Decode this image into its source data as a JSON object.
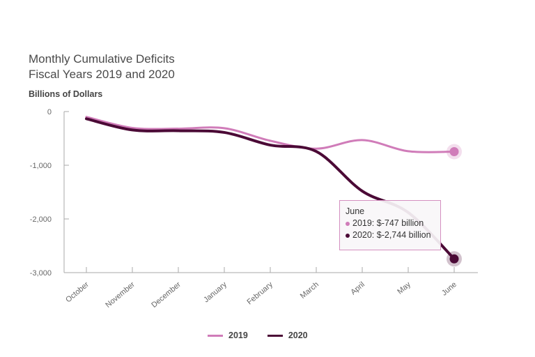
{
  "chart_data": {
    "type": "line",
    "title_lines": [
      "Monthly Cumulative Deficits",
      "Fiscal Years 2019 and 2020"
    ],
    "ylabel": "Billions of Dollars",
    "xlabel": "",
    "categories": [
      "October",
      "November",
      "December",
      "January",
      "February",
      "March",
      "April",
      "May",
      "June"
    ],
    "yticks": [
      0,
      -1000,
      -2000,
      -3000
    ],
    "ytick_labels": [
      "0",
      "-1,000",
      "-2,000",
      "-3,000"
    ],
    "ylim": [
      -3000,
      0
    ],
    "grid": false,
    "legend_position": "bottom",
    "series": [
      {
        "name": "2019",
        "color": "#d07cb9",
        "values": [
          -100,
          -305,
          -319,
          -310,
          -544,
          -691,
          -531,
          -739,
          -747
        ]
      },
      {
        "name": "2020",
        "color": "#4b0a36",
        "values": [
          -134,
          -343,
          -357,
          -389,
          -624,
          -743,
          -1481,
          -1880,
          -2744
        ]
      }
    ],
    "tooltip": {
      "title": "June",
      "line_2019": "2019: $-747 billion",
      "line_2020": "2020: $-2,744 billion"
    }
  }
}
